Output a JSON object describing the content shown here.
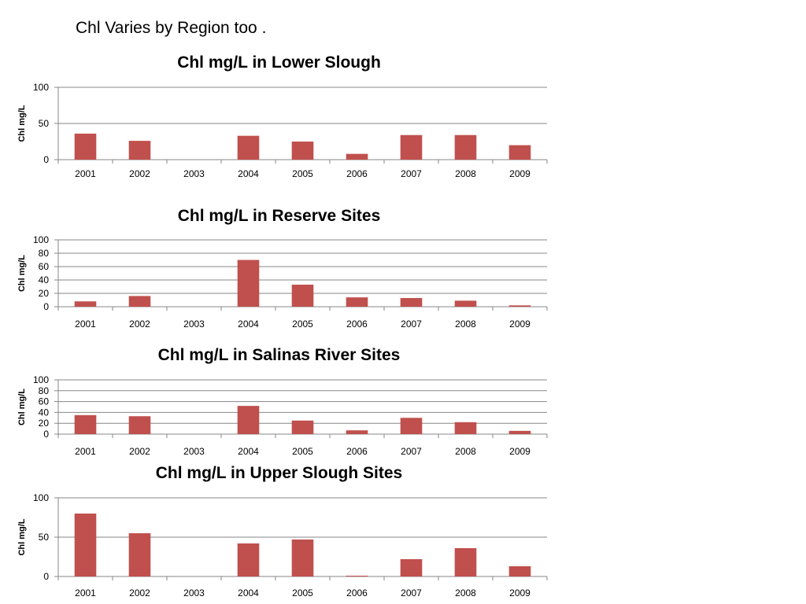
{
  "slide": {
    "title": "Chl Varies by Region too ."
  },
  "colors": {
    "bar": "#C0504D",
    "grid": "#878787",
    "axis": "#878787"
  },
  "chart_data": [
    {
      "type": "bar",
      "title": "Chl mg/L  in Lower Slough",
      "xlabel": "",
      "ylabel": "Chl mg/L",
      "categories": [
        "2001",
        "2002",
        "2003",
        "2004",
        "2005",
        "2006",
        "2007",
        "2008",
        "2009"
      ],
      "values": [
        36,
        26,
        null,
        33,
        25,
        8,
        34,
        34,
        20
      ],
      "ylim": [
        0,
        100
      ],
      "yticks": [
        0,
        50,
        100
      ],
      "grid": true,
      "legend": "none"
    },
    {
      "type": "bar",
      "title": "Chl mg/L  in Reserve Sites",
      "xlabel": "",
      "ylabel": "Chl mg/L",
      "categories": [
        "2001",
        "2002",
        "2003",
        "2004",
        "2005",
        "2006",
        "2007",
        "2008",
        "2009"
      ],
      "values": [
        8,
        16,
        null,
        70,
        33,
        14,
        13,
        9,
        2
      ],
      "ylim": [
        0,
        100
      ],
      "yticks": [
        0,
        20,
        40,
        60,
        80,
        100
      ],
      "grid": true,
      "legend": "none"
    },
    {
      "type": "bar",
      "title": "Chl mg/L  in Salinas River Sites",
      "xlabel": "",
      "ylabel": "Chl mg/L",
      "categories": [
        "2001",
        "2002",
        "2003",
        "2004",
        "2005",
        "2006",
        "2007",
        "2008",
        "2009"
      ],
      "values": [
        35,
        33,
        null,
        52,
        25,
        7,
        30,
        22,
        6
      ],
      "ylim": [
        0,
        100
      ],
      "yticks": [
        0,
        20,
        40,
        60,
        80,
        100
      ],
      "grid": true,
      "legend": "none"
    },
    {
      "type": "bar",
      "title": "Chl mg/L  in Upper Slough Sites",
      "xlabel": "",
      "ylabel": "Chl mg/L",
      "categories": [
        "2001",
        "2002",
        "2003",
        "2004",
        "2005",
        "2006",
        "2007",
        "2008",
        "2009"
      ],
      "values": [
        80,
        55,
        null,
        42,
        47,
        1,
        22,
        36,
        13
      ],
      "ylim": [
        0,
        100
      ],
      "yticks": [
        0,
        50,
        100
      ],
      "grid": true,
      "legend": "none"
    }
  ]
}
